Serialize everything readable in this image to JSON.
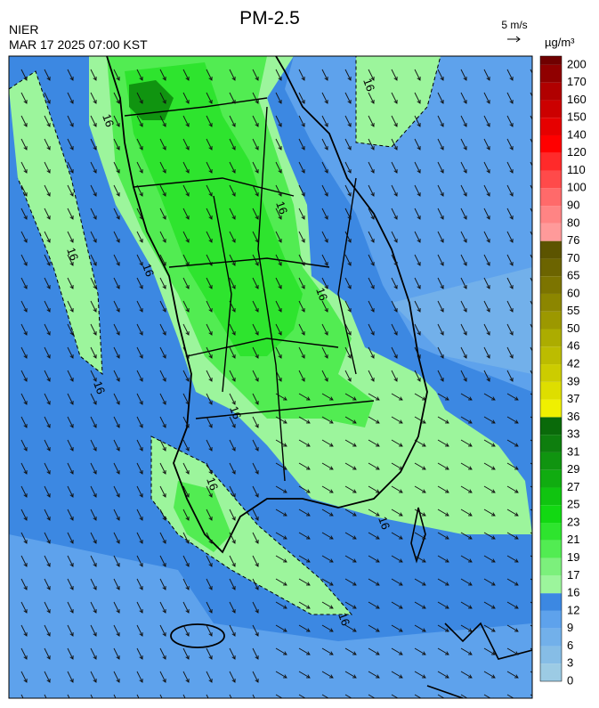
{
  "header": {
    "title": "PM-2.5",
    "source": "NIER",
    "timestamp": "MAR 17 2025 07:00 KST",
    "wind_scale": "5 m/s",
    "unit": "µg/m³"
  },
  "contour_labels": [
    "16",
    "16",
    "16",
    "16",
    "16",
    "16",
    "16",
    "16",
    "16",
    "16",
    "16"
  ],
  "colorbar": {
    "levels": [
      0,
      3,
      6,
      9,
      12,
      16,
      17,
      19,
      21,
      23,
      25,
      27,
      29,
      31,
      33,
      36,
      37,
      39,
      42,
      46,
      50,
      55,
      60,
      65,
      70,
      76,
      80,
      90,
      100,
      110,
      120,
      140,
      150,
      160,
      170,
      200
    ],
    "colors": [
      "#9ccbe4",
      "#86bde6",
      "#72b0ea",
      "#5ea2ec",
      "#3c88e2",
      "#9cf59c",
      "#7cf07c",
      "#52ec52",
      "#2ee42e",
      "#12d812",
      "#10c410",
      "#10ac10",
      "#109410",
      "#0e7e0e",
      "#0a6a0a",
      "#f0f000",
      "#dede00",
      "#cccc00",
      "#bcbc00",
      "#acac00",
      "#9c9800",
      "#8c8600",
      "#7c7400",
      "#6c6400",
      "#5c5400",
      "#ff9a9a",
      "#ff8484",
      "#ff6a6a",
      "#ff4a4a",
      "#ff2a2a",
      "#ff0000",
      "#e60000",
      "#cc0000",
      "#b00000",
      "#900000",
      "#700000"
    ]
  }
}
